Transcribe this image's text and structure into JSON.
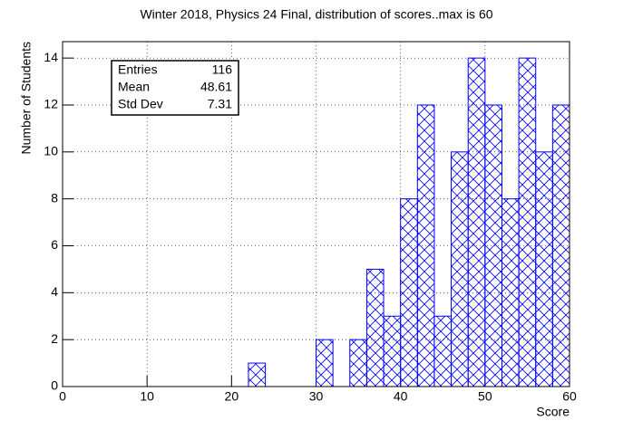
{
  "chart_data": {
    "type": "histogram",
    "title": "Winter 2018, Physics 24 Final, distribution of scores..max is 60",
    "x_label": "Score",
    "y_label": "Number of Students",
    "bins": [
      0,
      2,
      4,
      6,
      8,
      10,
      12,
      14,
      16,
      18,
      20,
      22,
      24,
      26,
      28,
      30,
      32,
      34,
      36,
      38,
      40,
      42,
      44,
      46,
      48,
      50,
      52,
      54,
      56,
      58,
      60
    ],
    "values": [
      0,
      0,
      0,
      0,
      0,
      0,
      0,
      0,
      0,
      0,
      0,
      1,
      0,
      0,
      0,
      2,
      0,
      2,
      5,
      3,
      8,
      12,
      3,
      10,
      14,
      12,
      8,
      14,
      10,
      12
    ],
    "color": "#0000ff",
    "xlim": [
      0,
      60
    ],
    "xticks": [
      0,
      10,
      20,
      30,
      40,
      50,
      60
    ],
    "ylim": [
      0,
      14.7
    ],
    "yticks": [
      0,
      2,
      4,
      6,
      8,
      10,
      12,
      14
    ],
    "grid": true,
    "stats": [
      {
        "label": "Entries",
        "value": 116
      },
      {
        "label": "Mean",
        "value": 48.61
      },
      {
        "label": "Std Dev",
        "value": 7.31
      }
    ]
  }
}
